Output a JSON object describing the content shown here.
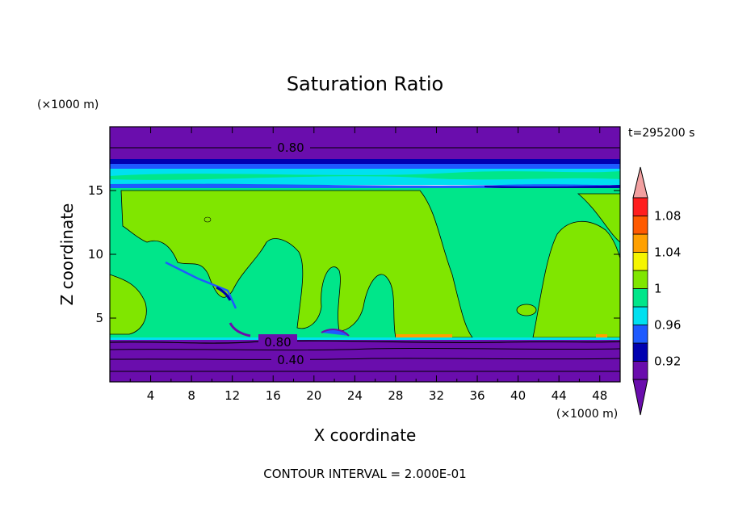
{
  "chart_data": {
    "type": "heatmap",
    "title": "Saturation Ratio",
    "xlabel": "X coordinate",
    "ylabel": "Z coordinate",
    "x_unit": "(×1000 m)",
    "y_unit": "(×1000 m)",
    "time_label": "t=295200 s",
    "footer": "CONTOUR INTERVAL = 2.000E-01",
    "xlim": [
      0,
      50
    ],
    "ylim": [
      0,
      20
    ],
    "x_ticks": [
      "4",
      "8",
      "12",
      "16",
      "20",
      "24",
      "28",
      "32",
      "36",
      "40",
      "44",
      "48"
    ],
    "x_tick_values": [
      4,
      8,
      12,
      16,
      20,
      24,
      28,
      32,
      36,
      40,
      44,
      48
    ],
    "y_ticks": [
      "5",
      "10",
      "15"
    ],
    "y_tick_values": [
      5,
      10,
      15
    ],
    "contour_labels": [
      {
        "text": "0.80",
        "x": 17.5,
        "y": 18.2
      },
      {
        "text": "0.80",
        "x": 16.5,
        "y": 3.1
      },
      {
        "text": "0.40",
        "x": 17.5,
        "y": 1.8
      }
    ],
    "colorbar": {
      "labels": [
        "1.08",
        "1.04",
        "1",
        "0.96",
        "0.92"
      ],
      "label_values": [
        1.08,
        1.04,
        1.0,
        0.96,
        0.92
      ],
      "levels": [
        0.9,
        0.92,
        0.94,
        0.96,
        0.98,
        1.0,
        1.02,
        1.04,
        1.06,
        1.08,
        1.1
      ],
      "colors": [
        "#6a0dad",
        "#0000b0",
        "#1e5aff",
        "#00e0f0",
        "#00e68a",
        "#80e600",
        "#f5f500",
        "#ffa000",
        "#ff5a00",
        "#ff1e1e"
      ],
      "under_color": "#6a0dad",
      "over_color": "#f2a0a0"
    },
    "bands": [
      {
        "z0": 18.2,
        "z1": 20.0,
        "value": 0.85
      },
      {
        "z0": 17.2,
        "z1": 18.2,
        "value": 0.88
      },
      {
        "z0": 16.7,
        "z1": 17.2,
        "value": 0.93
      },
      {
        "z0": 15.3,
        "z1": 16.7,
        "value": 0.97
      },
      {
        "z0": 0.0,
        "z1": 3.2,
        "value": 0.5
      }
    ],
    "series": []
  }
}
